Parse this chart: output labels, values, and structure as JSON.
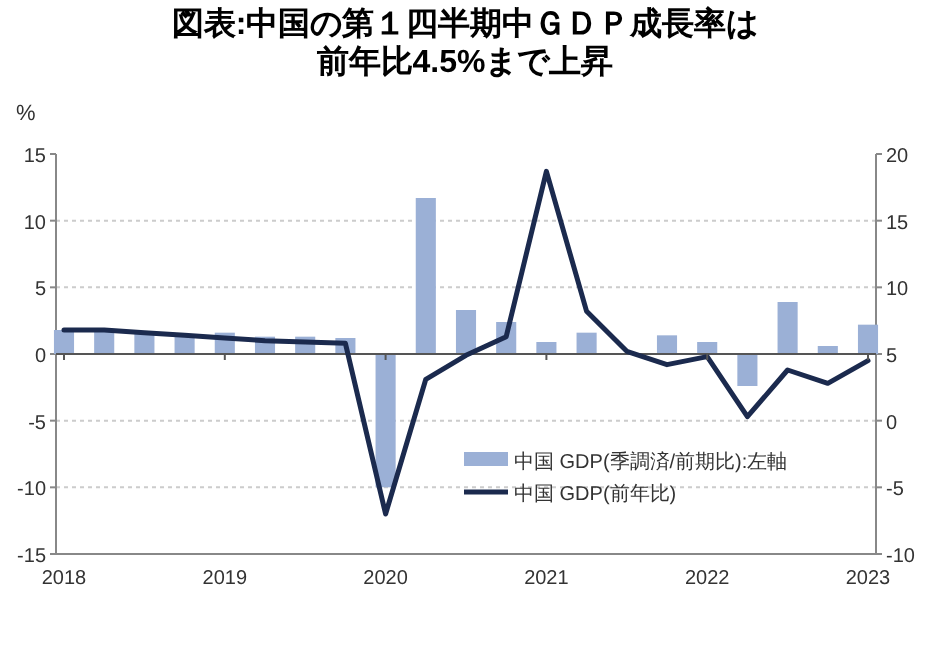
{
  "chart_data": {
    "type": "bar",
    "title": "図表:中国の第１四半期中ＧＤＰ成長率は",
    "subtitle": "前年比4.5%まで上昇",
    "ylabel": "%",
    "categories": [
      "2018",
      null,
      null,
      null,
      "2019",
      null,
      null,
      null,
      "2020",
      null,
      null,
      null,
      "2021",
      null,
      null,
      null,
      "2022",
      null,
      null,
      null,
      "2023"
    ],
    "series": [
      {
        "name": "中国 GDP(季調済/前期比):左軸",
        "color": "#9bb0d6",
        "values": [
          1.8,
          1.8,
          1.5,
          1.5,
          1.6,
          1.3,
          1.3,
          1.2,
          -10.0,
          11.7,
          3.3,
          2.4,
          0.9,
          1.6,
          null,
          1.4,
          0.9,
          -2.4,
          3.9,
          0.6,
          2.2
        ]
      },
      {
        "name": "中国 GDP(前年比)",
        "type": "line",
        "axis": "y2",
        "color": "#1b2a4e",
        "values": [
          6.8,
          6.8,
          6.6,
          6.4,
          6.2,
          6.0,
          5.9,
          5.8,
          -7.0,
          3.1,
          4.9,
          6.3,
          18.7,
          8.2,
          5.2,
          4.2,
          4.8,
          0.3,
          3.8,
          2.8,
          4.5
        ]
      }
    ],
    "ylim": [
      -15,
      15
    ],
    "yticks": [
      -15,
      -10,
      -5,
      0,
      5,
      10,
      15
    ],
    "y2lim": [
      -10,
      20
    ],
    "y2ticks": [
      -10,
      -5,
      0,
      5,
      10,
      15,
      20
    ],
    "ref_lines": [
      {
        "axis": "y",
        "value": 0,
        "color": "#555555"
      }
    ],
    "grid": "y",
    "legend": "bottom right",
    "line_style": "solid",
    "marker": "none"
  }
}
